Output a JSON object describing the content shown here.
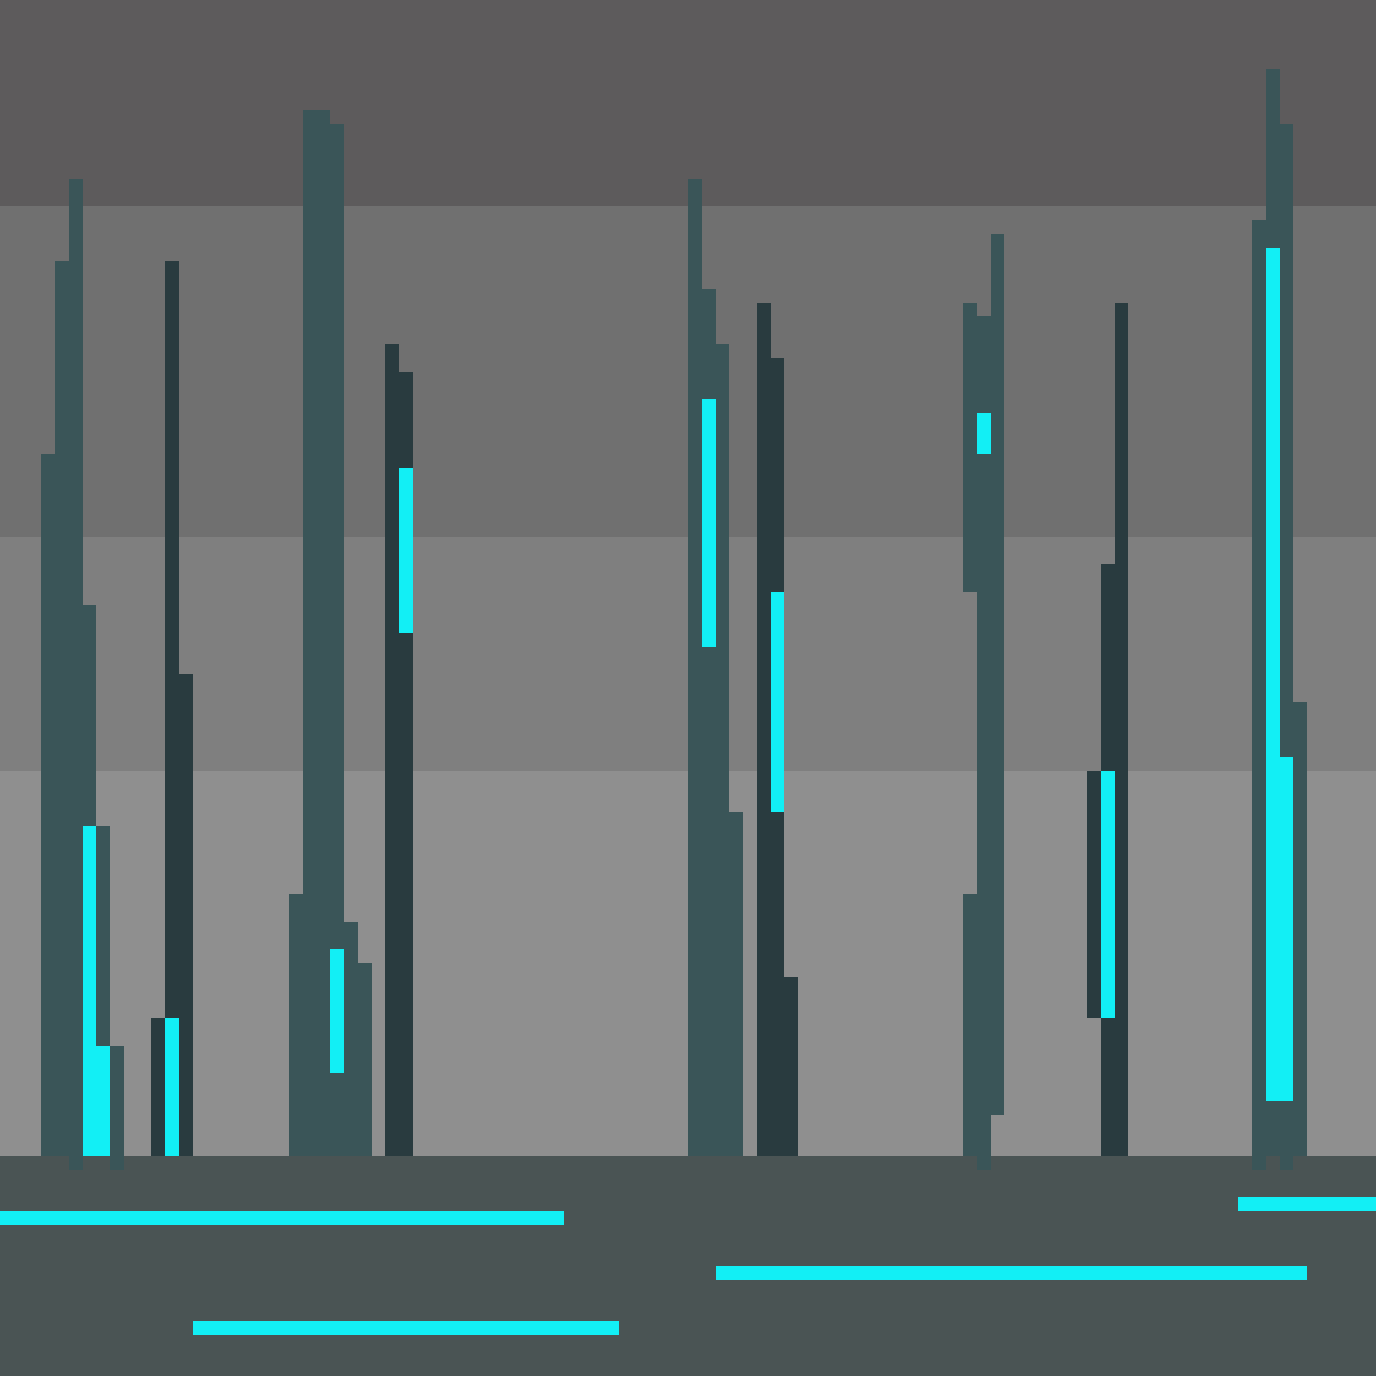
{
  "scene": {
    "description_visible_text": "",
    "colors": {
      "sky_top": "#5d5b5c",
      "sky_band_2": "#707070",
      "sky_band_3": "#7f7f7f",
      "sky_band_4": "#8f8f8f",
      "ground": "#4a5454",
      "tower_light": "#3a5558",
      "tower_dark": "#293b3f",
      "glow": "#12eff5"
    },
    "elements": {
      "sky": "sky-background",
      "ground": "ground-strip",
      "towers": "tower-columns",
      "neon_lines": "neon-ground-lines"
    }
  }
}
